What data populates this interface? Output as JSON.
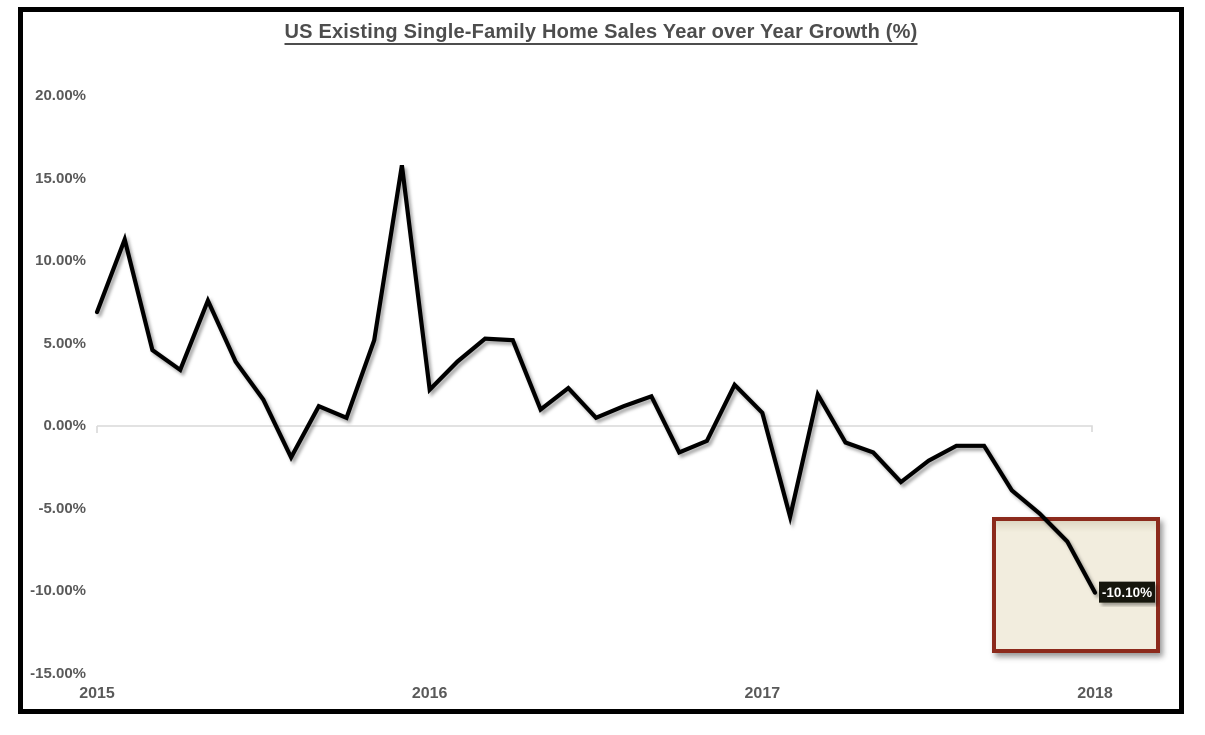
{
  "title": "US Existing Single-Family Home Sales Year over Year Growth (%)",
  "chart_data": {
    "type": "line",
    "title": "US Existing Single-Family Home Sales Year over Year Growth (%)",
    "x_start": "Jan 2015",
    "x_end": "Jan 2018",
    "x_interval": "monthly",
    "x_tick_labels": [
      "2015",
      "2016",
      "2017",
      "2018"
    ],
    "y_ticks": [
      {
        "value": 20,
        "label": "20.00%"
      },
      {
        "value": 15,
        "label": "15.00%"
      },
      {
        "value": 10,
        "label": "10.00%"
      },
      {
        "value": 5,
        "label": "5.00%"
      },
      {
        "value": 0,
        "label": "0.00%"
      },
      {
        "value": -5,
        "label": "-5.00%"
      },
      {
        "value": -10,
        "label": "-10.00%"
      },
      {
        "value": -15,
        "label": "-15.00%"
      }
    ],
    "ylim": [
      -15,
      20
    ],
    "grid": "single horizontal gridline at 0% with small end ticks",
    "legend": "none",
    "series": [
      {
        "name": "YoY growth (%)",
        "color": "#000000",
        "values": [
          6.9,
          11.3,
          4.6,
          3.4,
          7.6,
          3.9,
          1.6,
          -1.9,
          1.2,
          0.5,
          5.2,
          15.8,
          2.2,
          3.9,
          5.3,
          5.2,
          1.0,
          2.3,
          0.5,
          1.2,
          1.8,
          -1.6,
          -0.9,
          2.5,
          0.8,
          -5.5,
          1.9,
          -1.0,
          -1.6,
          -3.4,
          -2.1,
          -1.2,
          -1.2,
          -3.9,
          -5.3,
          -7.0,
          -10.1
        ]
      }
    ],
    "annotation": {
      "last_value_label": "-10.10%",
      "label_bg_color": "#14140c",
      "label_text_color": "#FFFFFF",
      "highlight_box": {
        "border_color": "#8C2A1B",
        "fill_color": "#F2EDDE",
        "px": {
          "x": 992,
          "y": 517,
          "width": 168,
          "height": 136
        }
      }
    },
    "colors": {
      "axis_label": "#595959",
      "title": "#4d4d4d",
      "gridline": "#D9D9D9",
      "frame": "#000000",
      "background": "#FFFFFF"
    }
  }
}
